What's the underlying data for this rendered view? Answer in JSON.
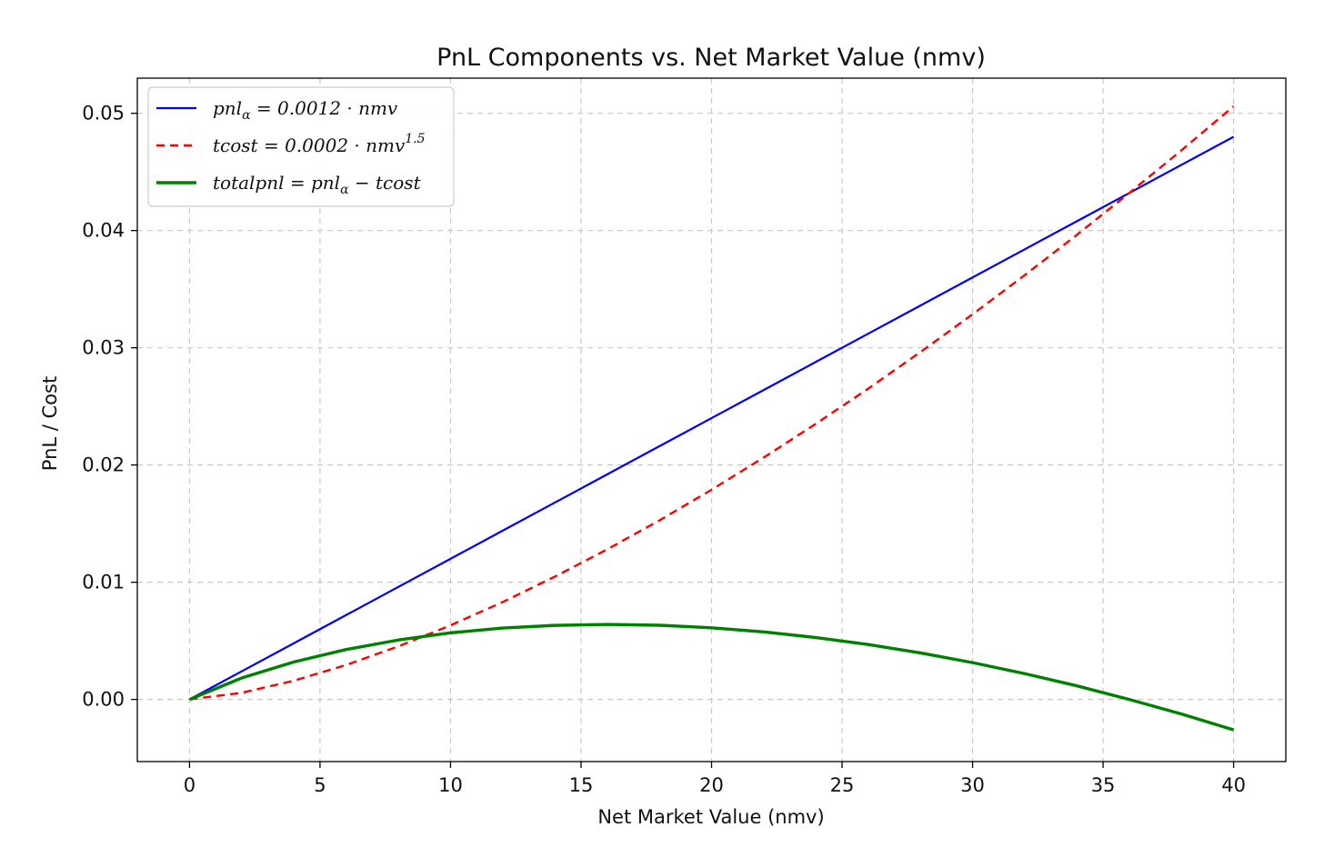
{
  "chart_data": {
    "type": "line",
    "title": "PnL Components vs. Net Market Value (nmv)",
    "xlabel": "Net Market Value (nmv)",
    "ylabel": "PnL / Cost",
    "xlim": [
      -2,
      42
    ],
    "ylim": [
      -0.0053,
      0.053
    ],
    "xticks": [
      0,
      5,
      10,
      15,
      20,
      25,
      30,
      35,
      40
    ],
    "xtick_labels": [
      "0",
      "5",
      "10",
      "15",
      "20",
      "25",
      "30",
      "35",
      "40"
    ],
    "yticks": [
      0.0,
      0.01,
      0.02,
      0.03,
      0.04,
      0.05
    ],
    "ytick_labels": [
      "0.00",
      "0.01",
      "0.02",
      "0.03",
      "0.04",
      "0.05"
    ],
    "grid": true,
    "legend_position": "upper-left",
    "x": [
      0,
      2,
      4,
      6,
      8,
      10,
      12,
      14,
      16,
      18,
      20,
      22,
      24,
      26,
      28,
      30,
      32,
      34,
      36,
      38,
      40
    ],
    "series": [
      {
        "name": "pnl_alpha",
        "legend": {
          "main": "pnl",
          "sub": "α",
          "rest": " = 0.0012 · nmv",
          "sup": ""
        },
        "color": "#0000ff",
        "style": "solid",
        "values": [
          0,
          0.0024,
          0.0048,
          0.0072,
          0.0096,
          0.012,
          0.0144,
          0.0168,
          0.0192,
          0.0216,
          0.024,
          0.0264,
          0.0288,
          0.0312,
          0.0336,
          0.036,
          0.0384,
          0.0408,
          0.0432,
          0.0456,
          0.048
        ]
      },
      {
        "name": "tcost",
        "legend": {
          "main": "tcost",
          "sub": "",
          "rest": " = 0.0002 · nmv",
          "sup": "1.5"
        },
        "color": "#ff0000",
        "style": "dashed",
        "values": [
          0,
          0.00057,
          0.0016,
          0.00294,
          0.00453,
          0.00632,
          0.00831,
          0.01048,
          0.0128,
          0.01527,
          0.01789,
          0.02064,
          0.02352,
          0.02651,
          0.02963,
          0.03286,
          0.0362,
          0.03964,
          0.0432,
          0.04684,
          0.0506
        ]
      },
      {
        "name": "totalpnl",
        "legend": {
          "main": "totalpnl = pnl",
          "sub": "α",
          "rest": " − tcost",
          "sup": ""
        },
        "color": "#008000",
        "style": "solid-thick",
        "values": [
          0,
          0.00183,
          0.0032,
          0.00426,
          0.00507,
          0.00568,
          0.00609,
          0.00632,
          0.0064,
          0.00633,
          0.00611,
          0.00576,
          0.00528,
          0.00469,
          0.00397,
          0.00314,
          0.0022,
          0.00116,
          0.0,
          -0.00124,
          -0.0026
        ]
      }
    ]
  }
}
